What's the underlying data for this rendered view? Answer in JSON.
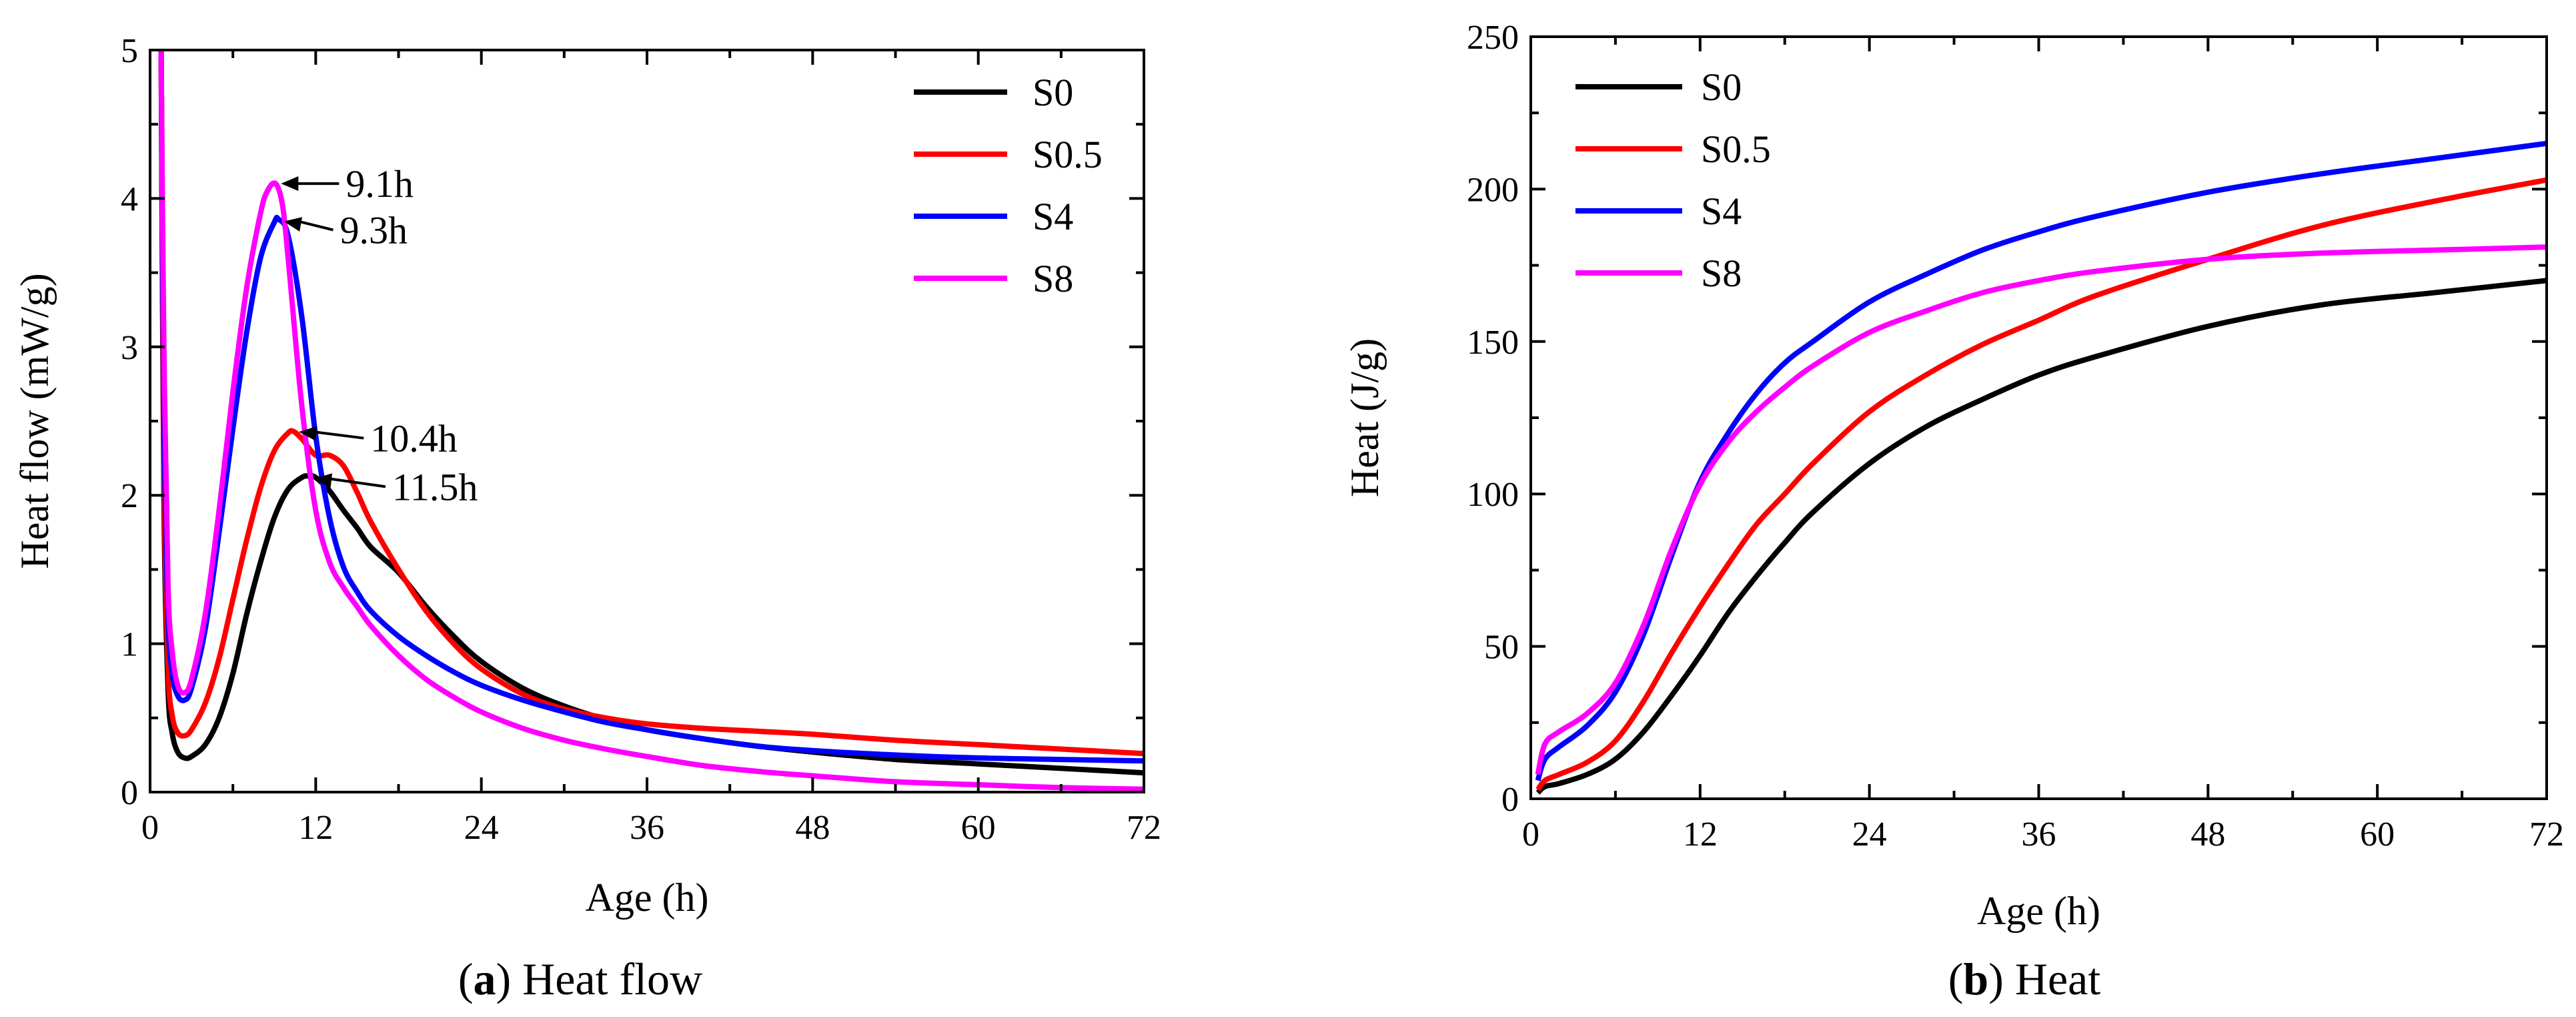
{
  "chart_data": [
    {
      "type": "line",
      "panel_label": "a",
      "caption": "Heat flow",
      "title": "",
      "xlabel": "Age (h)",
      "ylabel": "Heat flow (mW/g)",
      "xlim": [
        0,
        72
      ],
      "ylim": [
        0,
        5
      ],
      "xticks": [
        0,
        12,
        24,
        36,
        48,
        60,
        72
      ],
      "yticks": [
        0,
        1,
        2,
        3,
        4,
        5
      ],
      "grid": false,
      "legend_position": "top-right",
      "series": [
        {
          "name": "S0",
          "color": "#000000",
          "x": [
            0.8,
            1.0,
            1.3,
            1.6,
            2.0,
            2.5,
            3.0,
            4.0,
            5.0,
            6.0,
            7.0,
            8.0,
            9.0,
            10.0,
            11.0,
            11.5,
            12.0,
            13.0,
            14.0,
            15.0,
            16.0,
            18.0,
            20.0,
            22.0,
            24.0,
            27.0,
            30.0,
            33.0,
            36.0,
            40.0,
            44.0,
            48.0,
            54.0,
            60.0,
            66.0,
            72.0
          ],
          "y": [
            5.0,
            2.0,
            0.7,
            0.4,
            0.27,
            0.23,
            0.24,
            0.32,
            0.5,
            0.8,
            1.2,
            1.55,
            1.85,
            2.04,
            2.12,
            2.13,
            2.12,
            2.03,
            1.9,
            1.78,
            1.65,
            1.48,
            1.25,
            1.05,
            0.88,
            0.7,
            0.58,
            0.49,
            0.42,
            0.36,
            0.31,
            0.27,
            0.22,
            0.19,
            0.16,
            0.13
          ]
        },
        {
          "name": "S0.5",
          "color": "#ff0000",
          "x": [
            0.8,
            1.0,
            1.3,
            1.6,
            2.0,
            2.5,
            3.0,
            4.0,
            5.0,
            6.0,
            7.0,
            8.0,
            9.0,
            10.0,
            10.4,
            11.0,
            12.0,
            13.0,
            14.0,
            15.0,
            16.0,
            18.0,
            20.0,
            22.0,
            24.0,
            27.0,
            30.0,
            33.0,
            36.0,
            40.0,
            44.0,
            48.0,
            54.0,
            60.0,
            66.0,
            72.0
          ],
          "y": [
            5.0,
            2.2,
            0.85,
            0.52,
            0.4,
            0.38,
            0.42,
            0.6,
            0.9,
            1.3,
            1.7,
            2.05,
            2.3,
            2.42,
            2.43,
            2.38,
            2.27,
            2.27,
            2.2,
            2.02,
            1.82,
            1.5,
            1.22,
            1.0,
            0.83,
            0.66,
            0.56,
            0.5,
            0.46,
            0.43,
            0.41,
            0.39,
            0.35,
            0.32,
            0.29,
            0.26
          ]
        },
        {
          "name": "S4",
          "color": "#0000ff",
          "x": [
            0.8,
            1.0,
            1.3,
            1.6,
            2.0,
            2.5,
            3.0,
            4.0,
            5.0,
            6.0,
            7.0,
            8.0,
            9.0,
            9.3,
            10.0,
            11.0,
            12.0,
            13.0,
            14.0,
            15.0,
            16.0,
            18.0,
            20.0,
            22.0,
            24.0,
            27.0,
            30.0,
            33.0,
            36.0,
            40.0,
            44.0,
            48.0,
            54.0,
            60.0,
            66.0,
            72.0
          ],
          "y": [
            5.0,
            2.6,
            1.2,
            0.8,
            0.65,
            0.62,
            0.7,
            1.1,
            1.75,
            2.45,
            3.1,
            3.6,
            3.84,
            3.86,
            3.75,
            3.2,
            2.4,
            1.85,
            1.52,
            1.35,
            1.22,
            1.05,
            0.92,
            0.81,
            0.72,
            0.62,
            0.54,
            0.47,
            0.42,
            0.36,
            0.31,
            0.28,
            0.25,
            0.23,
            0.22,
            0.21
          ]
        },
        {
          "name": "S8",
          "color": "#ff00ff",
          "x": [
            0.8,
            1.0,
            1.3,
            1.6,
            2.0,
            2.5,
            3.0,
            4.0,
            5.0,
            6.0,
            7.0,
            8.0,
            8.5,
            9.1,
            9.6,
            10.0,
            11.0,
            12.0,
            13.0,
            14.0,
            15.0,
            16.0,
            18.0,
            20.0,
            22.0,
            24.0,
            27.0,
            30.0,
            33.0,
            36.0,
            40.0,
            44.0,
            48.0,
            54.0,
            60.0,
            66.0,
            72.0
          ],
          "y": [
            5.0,
            3.0,
            1.4,
            0.95,
            0.72,
            0.67,
            0.76,
            1.2,
            1.9,
            2.7,
            3.4,
            3.9,
            4.05,
            4.1,
            3.95,
            3.6,
            2.6,
            1.9,
            1.55,
            1.38,
            1.25,
            1.12,
            0.92,
            0.76,
            0.64,
            0.54,
            0.43,
            0.35,
            0.29,
            0.24,
            0.18,
            0.14,
            0.11,
            0.07,
            0.05,
            0.03,
            0.02
          ]
        }
      ],
      "annotations": [
        {
          "text": "9.1h",
          "series": "S8",
          "x": 9.1,
          "y": 4.1
        },
        {
          "text": "9.3h",
          "series": "S4",
          "x": 9.3,
          "y": 3.86
        },
        {
          "text": "10.4h",
          "series": "S0.5",
          "x": 10.4,
          "y": 2.43
        },
        {
          "text": "11.5h",
          "series": "S0",
          "x": 11.5,
          "y": 2.13
        }
      ]
    },
    {
      "type": "line",
      "panel_label": "b",
      "caption": "Heat",
      "title": "",
      "xlabel": "Age (h)",
      "ylabel": "Heat (J/g)",
      "xlim": [
        0,
        72
      ],
      "ylim": [
        0,
        250
      ],
      "xticks": [
        0,
        12,
        24,
        36,
        48,
        60,
        72
      ],
      "yticks": [
        0,
        50,
        100,
        150,
        200,
        250
      ],
      "grid": false,
      "legend_position": "top-left",
      "series": [
        {
          "name": "S0",
          "color": "#000000",
          "x": [
            0.5,
            1.0,
            2.0,
            4.0,
            6.0,
            8.0,
            10.0,
            12.0,
            14.0,
            16.0,
            18.0,
            20.0,
            24.0,
            28.0,
            32.0,
            36.0,
            40.0,
            48.0,
            56.0,
            64.0,
            72.0
          ],
          "y": [
            2,
            4,
            5,
            8,
            13,
            22,
            34,
            47,
            61,
            73,
            84,
            94,
            110,
            122,
            131,
            139,
            145,
            155,
            162,
            166,
            170
          ]
        },
        {
          "name": "S0.5",
          "color": "#ff0000",
          "x": [
            0.5,
            1.0,
            2.0,
            4.0,
            6.0,
            8.0,
            10.0,
            12.0,
            14.0,
            16.0,
            18.0,
            20.0,
            24.0,
            28.0,
            32.0,
            36.0,
            40.0,
            48.0,
            56.0,
            64.0,
            72.0
          ],
          "y": [
            3,
            6,
            8,
            12,
            19,
            32,
            48,
            63,
            77,
            90,
            100,
            110,
            127,
            139,
            149,
            157,
            165,
            177,
            188,
            196,
            203
          ]
        },
        {
          "name": "S4",
          "color": "#0000ff",
          "x": [
            0.5,
            1.0,
            2.0,
            4.0,
            6.0,
            8.0,
            10.0,
            12.0,
            14.0,
            16.0,
            18.0,
            20.0,
            24.0,
            28.0,
            32.0,
            36.0,
            40.0,
            48.0,
            56.0,
            64.0,
            72.0
          ],
          "y": [
            6,
            13,
            17,
            24,
            35,
            54,
            80,
            104,
            120,
            133,
            143,
            150,
            163,
            172,
            180,
            186,
            191,
            199,
            205,
            210,
            215
          ]
        },
        {
          "name": "S8",
          "color": "#ff00ff",
          "x": [
            0.5,
            1.0,
            2.0,
            4.0,
            6.0,
            8.0,
            10.0,
            12.0,
            14.0,
            16.0,
            18.0,
            20.0,
            24.0,
            28.0,
            32.0,
            36.0,
            40.0,
            48.0,
            56.0,
            64.0,
            72.0
          ],
          "y": [
            8,
            18,
            22,
            28,
            38,
            57,
            82,
            103,
            117,
            127,
            135,
            142,
            153,
            160,
            166,
            170,
            173,
            177,
            179,
            180,
            181
          ]
        }
      ]
    }
  ]
}
